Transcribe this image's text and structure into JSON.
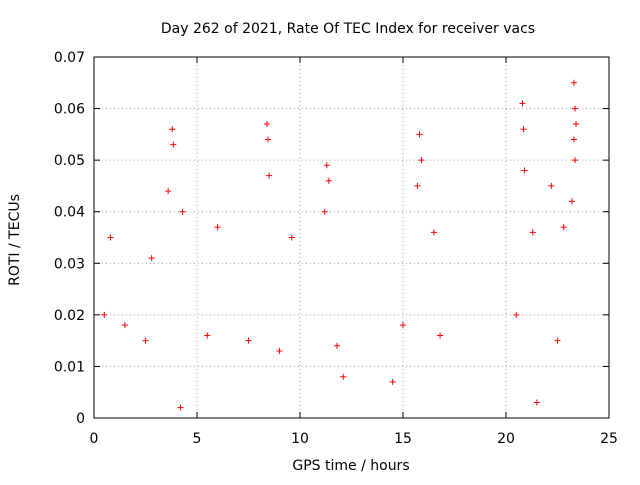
{
  "chart_data": {
    "type": "scatter",
    "title": "Day 262 of 2021, Rate Of TEC Index for receiver vacs",
    "xlabel": "GPS time / hours",
    "ylabel": "ROTI / TECUs",
    "xlim": [
      0,
      25
    ],
    "ylim": [
      0,
      0.07
    ],
    "xticks": [
      "0",
      "5",
      "10",
      "15",
      "20",
      "25"
    ],
    "xtick_values": [
      0,
      5,
      10,
      15,
      20,
      25
    ],
    "yticks": [
      "0",
      "0.01",
      "0.02",
      "0.03",
      "0.04",
      "0.05",
      "0.06",
      "0.07"
    ],
    "ytick_values": [
      0,
      0.01,
      0.02,
      0.03,
      0.04,
      0.05,
      0.06,
      0.07
    ],
    "grid": true,
    "marker": "+",
    "marker_color": "#ff0000",
    "data_gaps_hours": [
      [
        12.3,
        14.3
      ],
      [
        17.8,
        20.0
      ],
      [
        23.5,
        25
      ]
    ],
    "series": [
      {
        "points": [
          [
            3.6,
            0.044
          ],
          [
            3.8,
            0.056
          ],
          [
            3.85,
            0.053
          ],
          [
            4.3,
            0.04
          ],
          [
            6.0,
            0.037
          ],
          [
            8.4,
            0.057
          ],
          [
            8.45,
            0.054
          ],
          [
            8.5,
            0.047
          ],
          [
            9.6,
            0.035
          ],
          [
            11.3,
            0.049
          ],
          [
            11.4,
            0.046
          ],
          [
            11.2,
            0.04
          ],
          [
            15.8,
            0.055
          ],
          [
            15.9,
            0.05
          ],
          [
            15.7,
            0.045
          ],
          [
            16.5,
            0.036
          ],
          [
            20.8,
            0.061
          ],
          [
            20.85,
            0.056
          ],
          [
            20.9,
            0.048
          ],
          [
            22.2,
            0.045
          ],
          [
            23.3,
            0.065
          ],
          [
            23.35,
            0.06
          ],
          [
            23.4,
            0.057
          ],
          [
            23.3,
            0.054
          ],
          [
            23.35,
            0.05
          ],
          [
            23.2,
            0.042
          ],
          [
            22.8,
            0.037
          ],
          [
            21.3,
            0.036
          ],
          [
            0.8,
            0.035
          ],
          [
            2.8,
            0.031
          ],
          [
            0.5,
            0.02
          ],
          [
            1.5,
            0.018
          ],
          [
            2.5,
            0.015
          ],
          [
            5.5,
            0.016
          ],
          [
            7.5,
            0.015
          ],
          [
            9.0,
            0.013
          ],
          [
            11.8,
            0.014
          ],
          [
            15.0,
            0.018
          ],
          [
            16.8,
            0.016
          ],
          [
            20.5,
            0.02
          ],
          [
            22.5,
            0.015
          ],
          [
            12.1,
            0.008
          ],
          [
            14.5,
            0.007
          ],
          [
            21.5,
            0.003
          ],
          [
            4.2,
            0.002
          ]
        ]
      }
    ]
  }
}
